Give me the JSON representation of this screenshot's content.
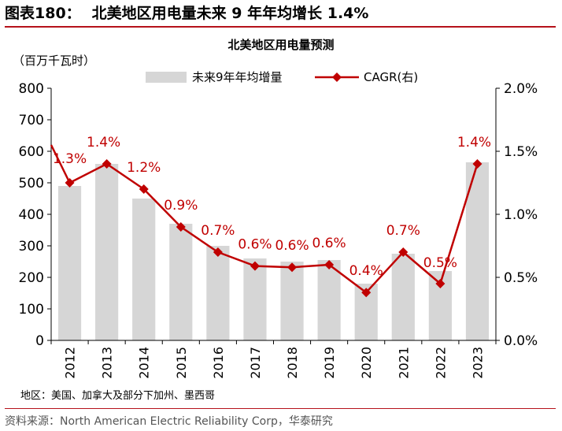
{
  "figure": {
    "caption": "图表180：",
    "title": "北美地区用电量未来 9 年年均增长 1.4%",
    "region_note": "地区：美国、加拿大及部分下加州、墨西哥",
    "source": "资料来源：North American Electric Reliability Corp，华泰研究"
  },
  "colors": {
    "bar": "#d6d6d6",
    "line": "#c00000",
    "rule": "#b5121b",
    "label": "#c00000"
  },
  "chart_data": {
    "type": "bar+line",
    "title": "北美地区用电量预测",
    "unit_label": "（百万千瓦时）",
    "categories": [
      "2012",
      "2013",
      "2014",
      "2015",
      "2016",
      "2017",
      "2018",
      "2019",
      "2020",
      "2021",
      "2022",
      "2023"
    ],
    "series": [
      {
        "name": "未来9年年均增量",
        "type": "bar",
        "axis": "left",
        "values": [
          490,
          560,
          450,
          370,
          300,
          260,
          250,
          255,
          180,
          275,
          220,
          565
        ]
      },
      {
        "name": "CAGR(右)",
        "type": "line",
        "axis": "right",
        "values": [
          1.25,
          1.4,
          1.2,
          0.9,
          0.7,
          0.59,
          0.58,
          0.6,
          0.38,
          0.7,
          0.45,
          1.4
        ],
        "lead_in_value": 1.55,
        "labels": [
          "1.3%",
          "1.4%",
          "1.2%",
          "0.9%",
          "0.7%",
          "0.6%",
          "0.6%",
          "0.6%",
          "0.4%",
          "0.7%",
          "0.5%",
          "1.4%"
        ]
      }
    ],
    "y_left": {
      "min": 0,
      "max": 800,
      "ticks": [
        "0",
        "100",
        "200",
        "300",
        "400",
        "500",
        "600",
        "700",
        "800"
      ]
    },
    "y_right": {
      "min": 0,
      "max": 2.0,
      "ticks": [
        "0.0%",
        "0.5%",
        "1.0%",
        "1.5%",
        "2.0%"
      ]
    },
    "legend": {
      "position": "top-center"
    },
    "grid": false
  }
}
